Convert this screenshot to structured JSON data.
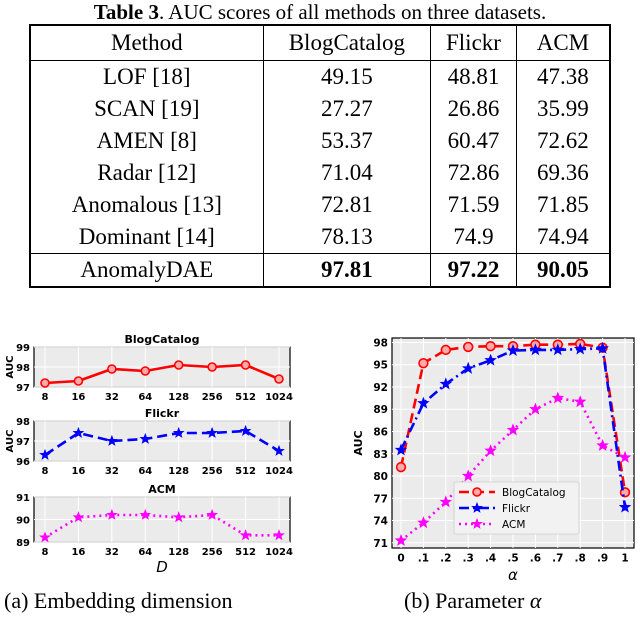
{
  "table": {
    "caption_label": "Table 3",
    "caption_text": ". AUC scores of all methods on three datasets.",
    "headers": [
      "Method",
      "BlogCatalog",
      "Flickr",
      "ACM"
    ],
    "rows": [
      {
        "method": "LOF [18]",
        "values": [
          "49.15",
          "48.81",
          "47.38"
        ]
      },
      {
        "method": "SCAN [19]",
        "values": [
          "27.27",
          "26.86",
          "35.99"
        ]
      },
      {
        "method": "AMEN [8]",
        "values": [
          "53.37",
          "60.47",
          "72.62"
        ]
      },
      {
        "method": "Radar [12]",
        "values": [
          "71.04",
          "72.86",
          "69.36"
        ]
      },
      {
        "method": "Anomalous [13]",
        "values": [
          "72.81",
          "71.59",
          "71.85"
        ]
      },
      {
        "method": "Dominant [14]",
        "values": [
          "78.13",
          "74.9",
          "74.94"
        ]
      },
      {
        "method": "AnomalyDAE",
        "values": [
          "97.81",
          "97.22",
          "90.05"
        ]
      }
    ]
  },
  "subcaptions": {
    "a": "(a) Embedding dimension",
    "b_prefix": "(b) Parameter ",
    "b_symbol": "α"
  },
  "chart_data": [
    {
      "type": "line",
      "title": "BlogCatalog",
      "ylabel": "AUC",
      "x": [
        "8",
        "16",
        "32",
        "64",
        "128",
        "256",
        "512",
        "1024"
      ],
      "series": [
        {
          "values": [
            97.2,
            97.3,
            97.9,
            97.8,
            98.1,
            98.0,
            98.1,
            97.4
          ],
          "color": "#ff0000",
          "marker": "circle",
          "dash": "solid"
        }
      ],
      "ylim": [
        97,
        99
      ],
      "yticks": [
        97,
        98,
        99
      ],
      "grid": true
    },
    {
      "type": "line",
      "title": "Flickr",
      "ylabel": "AUC",
      "x": [
        "8",
        "16",
        "32",
        "64",
        "128",
        "256",
        "512",
        "1024"
      ],
      "series": [
        {
          "values": [
            96.3,
            97.4,
            97.0,
            97.1,
            97.4,
            97.4,
            97.5,
            96.5
          ],
          "color": "#0000ff",
          "marker": "star",
          "dash": "dashed"
        }
      ],
      "ylim": [
        96,
        98
      ],
      "yticks": [
        96,
        97,
        98
      ],
      "grid": true
    },
    {
      "type": "line",
      "title": "ACM",
      "xlabel": "D",
      "x": [
        "8",
        "16",
        "32",
        "64",
        "128",
        "256",
        "512",
        "1024"
      ],
      "series": [
        {
          "values": [
            89.2,
            90.1,
            90.2,
            90.2,
            90.1,
            90.2,
            89.3,
            89.3
          ],
          "color": "#ff00ff",
          "marker": "star",
          "dash": "dotted"
        }
      ],
      "ylim": [
        89,
        91
      ],
      "yticks": [
        89,
        90,
        91
      ],
      "grid": true
    },
    {
      "type": "line",
      "xlabel": "α",
      "ylabel": "AUC",
      "x": [
        0,
        0.1,
        0.2,
        0.3,
        0.4,
        0.5,
        0.6,
        0.7,
        0.8,
        0.9,
        1.0
      ],
      "xticks": [
        "0",
        ".1",
        ".2",
        ".3",
        ".4",
        ".5",
        ".6",
        ".7",
        ".8",
        ".9",
        "1"
      ],
      "yticks": [
        71,
        74,
        77,
        80,
        83,
        86,
        89,
        92,
        95,
        98
      ],
      "ylim": [
        70.3,
        98.6
      ],
      "grid": true,
      "legend": "bottom-center",
      "series": [
        {
          "name": "BlogCatalog",
          "values": [
            81.2,
            95.2,
            97.0,
            97.4,
            97.5,
            97.5,
            97.7,
            97.7,
            97.8,
            97.3,
            77.8
          ],
          "color": "#ff0000",
          "marker": "circle",
          "dash": "dashed"
        },
        {
          "name": "Flickr",
          "values": [
            83.5,
            89.8,
            92.4,
            94.5,
            95.6,
            96.9,
            97.0,
            97.0,
            97.1,
            97.2,
            75.8
          ],
          "color": "#0000ff",
          "marker": "star",
          "dash": "dashdot"
        },
        {
          "name": "ACM",
          "values": [
            71.3,
            73.7,
            76.5,
            80.0,
            83.4,
            86.2,
            89.0,
            90.5,
            90.0,
            84.1,
            82.5
          ],
          "color": "#ff00ff",
          "marker": "star",
          "dash": "dotted"
        }
      ]
    }
  ]
}
